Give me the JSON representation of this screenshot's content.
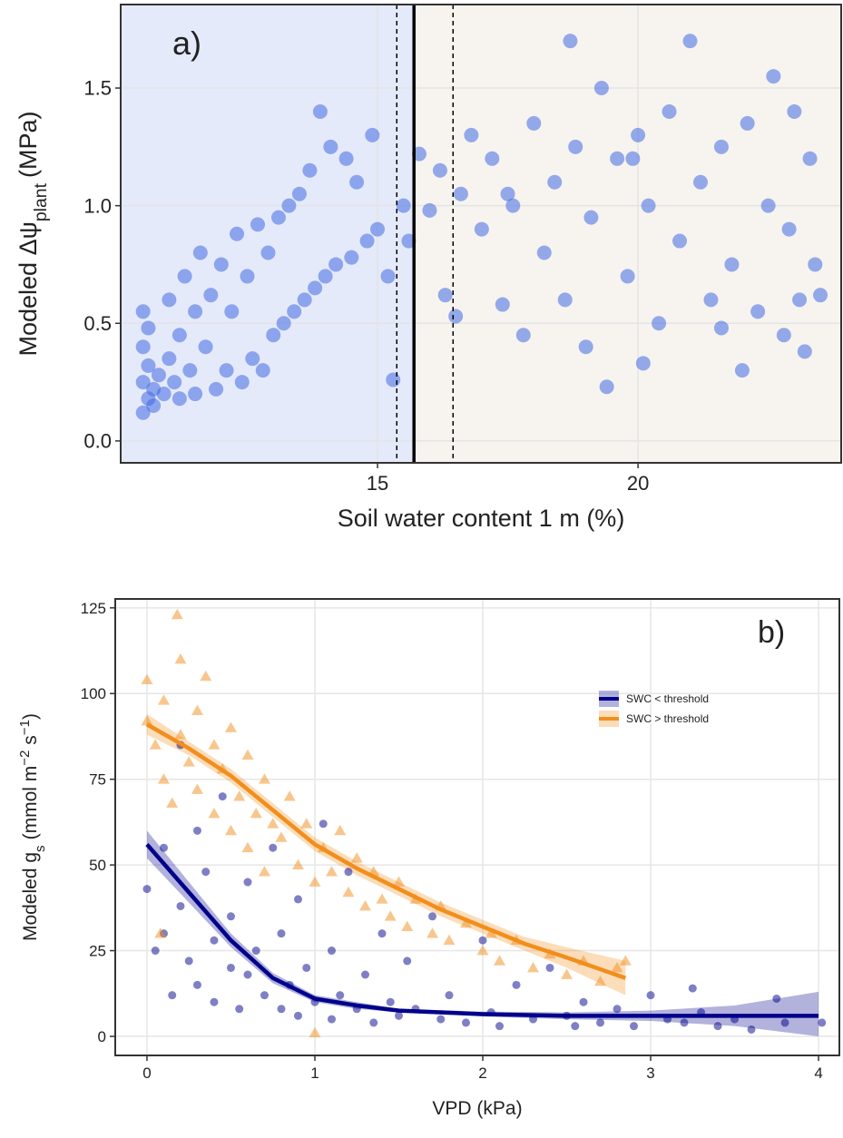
{
  "chart_data": [
    {
      "type": "scatter",
      "annotation": "a)",
      "xlabel": "Soil water content 1 m (%)",
      "ylabel_parts": [
        {
          "text": "Modeled Δψ"
        },
        {
          "text": "plant",
          "shift": "sub"
        },
        {
          "text": "(MPa)"
        }
      ],
      "xlim": [
        10.07,
        23.9
      ],
      "ylim": [
        -0.093,
        1.855
      ],
      "xticks": [
        15,
        20
      ],
      "yticks": [
        {
          "value": 0,
          "label": "0.0"
        },
        0.5,
        {
          "value": 1,
          "label": "1.0"
        },
        1.5
      ],
      "grid": true,
      "threshold": {
        "value": 15.7,
        "lower": 15.37,
        "upper": 16.45
      },
      "region_colors": [
        "#e5eafa",
        "#f7f4ef"
      ],
      "series": [
        {
          "color": "#4169e1",
          "marker": "circle",
          "x": [
            10.5,
            10.5,
            10.5,
            10.5,
            10.6,
            10.6,
            10.6,
            10.7,
            10.7,
            10.8,
            10.9,
            11.0,
            11.0,
            11.1,
            11.2,
            11.2,
            11.3,
            11.4,
            11.5,
            11.5,
            11.6,
            11.7,
            11.8,
            11.9,
            12.0,
            12.1,
            12.2,
            12.3,
            12.4,
            12.5,
            12.6,
            12.7,
            12.8,
            12.9,
            13.0,
            13.1,
            13.2,
            13.3,
            13.4,
            13.5,
            13.6,
            13.7,
            13.8,
            13.9,
            14.0,
            14.1,
            14.2,
            14.4,
            14.5,
            14.6,
            14.8,
            14.9,
            15.0,
            15.2,
            15.3,
            15.5,
            15.6,
            15.8,
            16.0,
            16.2,
            16.3,
            16.5,
            16.6,
            16.8,
            17.0,
            17.2,
            17.4,
            17.6,
            17.8,
            18.0,
            18.2,
            18.4,
            18.6,
            18.7,
            18.8,
            19.0,
            19.1,
            19.3,
            19.4,
            19.6,
            19.8,
            20.0,
            20.1,
            20.2,
            20.4,
            20.6,
            20.8,
            21.0,
            21.2,
            21.4,
            21.6,
            21.8,
            22.0,
            22.1,
            22.3,
            22.5,
            22.6,
            22.8,
            22.9,
            23.0,
            23.1,
            23.2,
            23.3,
            23.4,
            23.5,
            19.9,
            21.6,
            17.5
          ],
          "values": [
            0.12,
            0.25,
            0.4,
            0.55,
            0.18,
            0.32,
            0.48,
            0.15,
            0.22,
            0.28,
            0.2,
            0.35,
            0.6,
            0.25,
            0.45,
            0.18,
            0.7,
            0.3,
            0.55,
            0.2,
            0.8,
            0.4,
            0.62,
            0.22,
            0.75,
            0.3,
            0.55,
            0.88,
            0.25,
            0.7,
            0.35,
            0.92,
            0.3,
            0.8,
            0.45,
            0.95,
            0.5,
            1.0,
            0.55,
            1.05,
            0.6,
            1.15,
            0.65,
            1.4,
            0.7,
            1.25,
            0.75,
            1.2,
            0.78,
            1.1,
            0.85,
            1.3,
            0.9,
            0.7,
            0.26,
            1.0,
            0.85,
            1.22,
            0.98,
            1.15,
            0.62,
            0.53,
            1.05,
            1.3,
            0.9,
            1.2,
            0.58,
            1.0,
            0.45,
            1.35,
            0.8,
            1.1,
            0.6,
            1.7,
            1.25,
            0.4,
            0.95,
            1.5,
            0.23,
            1.2,
            0.7,
            1.3,
            0.33,
            1.0,
            0.5,
            1.4,
            0.85,
            1.7,
            1.1,
            0.6,
            1.25,
            0.75,
            0.3,
            1.35,
            0.55,
            1.0,
            1.55,
            0.45,
            0.9,
            1.4,
            0.6,
            0.38,
            1.2,
            0.75,
            0.62,
            1.2,
            0.48,
            1.05
          ]
        }
      ]
    },
    {
      "type": "scatter",
      "annotation": "b)",
      "xlabel": "VPD (kPa)",
      "ylabel_parts": [
        {
          "text": "Modeled g"
        },
        {
          "text": "s",
          "shift": "sub"
        },
        {
          "text": "(mmol m"
        },
        {
          "text": "−2",
          "shift": "super"
        },
        {
          "text": " s"
        },
        {
          "text": "−1",
          "shift": "super"
        },
        {
          "text": ")"
        }
      ],
      "xlim": [
        -0.189,
        4.124
      ],
      "ylim": [
        -5.56,
        127.6
      ],
      "xticks": [
        0,
        1,
        2,
        3,
        4
      ],
      "yticks": [
        0,
        25,
        50,
        75,
        100,
        125
      ],
      "grid": true,
      "legend": "top-right",
      "series": [
        {
          "name": "SWC < threshold",
          "color": "#00008b",
          "marker": "circle",
          "x": [
            0.0,
            0.05,
            0.1,
            0.1,
            0.15,
            0.2,
            0.2,
            0.25,
            0.3,
            0.3,
            0.35,
            0.4,
            0.4,
            0.45,
            0.5,
            0.5,
            0.55,
            0.6,
            0.6,
            0.65,
            0.7,
            0.75,
            0.8,
            0.8,
            0.85,
            0.9,
            0.9,
            0.95,
            1.0,
            1.05,
            1.1,
            1.1,
            1.15,
            1.2,
            1.25,
            1.3,
            1.35,
            1.4,
            1.45,
            1.5,
            1.55,
            1.6,
            1.7,
            1.75,
            1.8,
            1.9,
            2.0,
            2.05,
            2.1,
            2.2,
            2.3,
            2.4,
            2.5,
            2.55,
            2.6,
            2.7,
            2.8,
            2.9,
            3.0,
            3.1,
            3.2,
            3.25,
            3.3,
            3.4,
            3.5,
            3.6,
            3.75,
            3.8,
            4.02
          ],
          "values": [
            43,
            25,
            55,
            30,
            12,
            85,
            38,
            22,
            60,
            15,
            48,
            28,
            10,
            70,
            20,
            35,
            8,
            45,
            18,
            25,
            12,
            55,
            30,
            8,
            15,
            40,
            6,
            20,
            10,
            62,
            25,
            5,
            12,
            48,
            8,
            18,
            4,
            30,
            10,
            6,
            22,
            8,
            35,
            5,
            12,
            4,
            28,
            7,
            3,
            15,
            5,
            20,
            6,
            3,
            10,
            4,
            8,
            3,
            12,
            5,
            4,
            14,
            7,
            3,
            5,
            2,
            11,
            4,
            4
          ],
          "fit": {
            "x": [
              0,
              0.25,
              0.5,
              0.75,
              1,
              1.25,
              1.5,
              2,
              2.5,
              3,
              3.5,
              4
            ],
            "values": [
              56,
              42,
              28,
              17,
              11,
              9,
              7.5,
              6.5,
              6,
              6,
              6,
              6
            ],
            "lower": [
              52,
              39,
              26,
              15.5,
              10,
              8,
              7,
              5.8,
              5,
              4.5,
              3,
              0
            ],
            "upper": [
              60,
              45,
              30,
              18.5,
              12,
              10,
              8,
              7.2,
              7,
              7.5,
              9,
              13
            ]
          }
        },
        {
          "name": "SWC > threshold",
          "color": "#f28e1c",
          "marker": "triangle",
          "x": [
            0.0,
            0.0,
            0.05,
            0.1,
            0.1,
            0.15,
            0.18,
            0.2,
            0.2,
            0.25,
            0.3,
            0.3,
            0.35,
            0.4,
            0.4,
            0.45,
            0.5,
            0.5,
            0.55,
            0.6,
            0.6,
            0.65,
            0.7,
            0.7,
            0.75,
            0.8,
            0.85,
            0.9,
            0.95,
            1.0,
            1.0,
            1.05,
            1.1,
            1.15,
            1.2,
            1.25,
            1.3,
            1.35,
            1.4,
            1.45,
            1.5,
            1.55,
            1.6,
            1.7,
            1.75,
            1.8,
            1.9,
            2.0,
            2.05,
            2.1,
            2.2,
            2.3,
            2.4,
            2.5,
            2.6,
            2.7,
            2.8,
            2.85,
            0.08
          ],
          "values": [
            104,
            92,
            85,
            75,
            98,
            68,
            123,
            110,
            88,
            80,
            95,
            72,
            105,
            65,
            85,
            78,
            90,
            60,
            70,
            82,
            55,
            65,
            75,
            48,
            62,
            58,
            70,
            50,
            62,
            45,
            1,
            55,
            48,
            60,
            42,
            52,
            38,
            48,
            40,
            35,
            45,
            32,
            40,
            30,
            38,
            28,
            33,
            25,
            30,
            22,
            28,
            20,
            24,
            18,
            22,
            16,
            20,
            22,
            30
          ],
          "fit": {
            "x": [
              0,
              0.25,
              0.5,
              0.75,
              1,
              1.25,
              1.5,
              1.75,
              2,
              2.25,
              2.5,
              2.85
            ],
            "values": [
              91,
              84,
              76,
              66,
              56,
              49,
              43,
              37,
              32,
              27,
              23,
              17
            ],
            "lower": [
              88,
              82,
              74,
              64,
              54,
              47,
              41,
              35,
              30,
              25,
              20,
              12
            ],
            "upper": [
              94,
              86,
              78,
              68,
              58,
              51,
              45,
              39,
              34,
              29,
              26,
              22
            ]
          }
        }
      ]
    }
  ]
}
